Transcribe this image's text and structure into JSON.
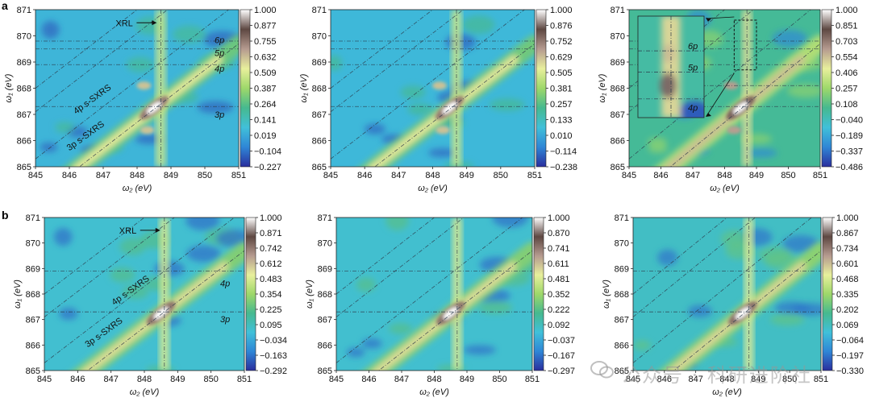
{
  "panel_labels": [
    "a",
    "b"
  ],
  "watermark": {
    "text": "公众号 · 科研进阶社",
    "icon": "wechat-icon"
  },
  "colors": {
    "background": "#2fb08f",
    "colormap": [
      "#2a2e9e",
      "#2f86d6",
      "#41c0d9",
      "#46b98f",
      "#9ed86a",
      "#e8ef9c",
      "#b59a8f",
      "#5e4842",
      "#ffffff"
    ],
    "diagonal_line": "#2c3a4a"
  },
  "axis_labels": {
    "x": "ω₂ (eV)",
    "y": "ω₁ (eV)"
  },
  "annotation_labels": {
    "xrl": "XRL",
    "p6": "6p",
    "p5": "5p",
    "p4": "4p",
    "p3": "3p",
    "sxrs4": "4p s-SXRS",
    "sxrs3": "3p s-SXRS"
  },
  "chart_data": [
    {
      "type": "heatmap",
      "row": "a",
      "col": 1,
      "xlabel": "ω₂ (eV)",
      "ylabel": "ω₁ (eV)",
      "xlim": [
        845,
        851
      ],
      "ylim": [
        865,
        871
      ],
      "xticks": [
        "845",
        "846",
        "847",
        "848",
        "849",
        "850",
        "851"
      ],
      "yticks": [
        "865",
        "866",
        "867",
        "868",
        "869",
        "870",
        "871"
      ],
      "colorbar_ticks": [
        "1.000",
        "0.877",
        "0.755",
        "0.632",
        "0.509",
        "0.387",
        "0.264",
        "0.141",
        "0.019",
        "−0.104",
        "−0.227"
      ],
      "vmin": -0.227,
      "vmax": 1.0,
      "xrl_x": 848.7,
      "hlines": [
        867.3,
        868.9,
        869.5,
        869.8
      ],
      "annotations": [
        "XRL",
        "6p",
        "5p",
        "4p",
        "3p",
        "4p s-SXRS",
        "3p s-SXRS"
      ]
    },
    {
      "type": "heatmap",
      "row": "a",
      "col": 2,
      "xlabel": "ω₂ (eV)",
      "ylabel": "ω₁ (eV)",
      "xlim": [
        845,
        851
      ],
      "ylim": [
        865,
        871
      ],
      "xticks": [
        "845",
        "846",
        "847",
        "848",
        "849",
        "850",
        "851"
      ],
      "yticks": [
        "865",
        "866",
        "867",
        "868",
        "869",
        "870",
        "871"
      ],
      "colorbar_ticks": [
        "1.000",
        "0.876",
        "0.752",
        "0.629",
        "0.505",
        "0.381",
        "0.257",
        "0.133",
        "0.010",
        "−0.114",
        "−0.238"
      ],
      "vmin": -0.238,
      "vmax": 1.0,
      "xrl_x": 848.7,
      "hlines": [
        867.3,
        868.9,
        869.5,
        869.8
      ],
      "annotations": []
    },
    {
      "type": "heatmap",
      "row": "a",
      "col": 3,
      "xlabel": "ω₂ (eV)",
      "ylabel": "ω₁ (eV)",
      "xlim": [
        845,
        851
      ],
      "ylim": [
        865,
        871
      ],
      "xticks": [
        "845",
        "846",
        "847",
        "848",
        "849",
        "850",
        "851"
      ],
      "yticks": [
        "865",
        "866",
        "867",
        "868",
        "869",
        "870",
        "871"
      ],
      "colorbar_ticks": [
        "1.000",
        "0.851",
        "0.703",
        "0.554",
        "0.406",
        "0.257",
        "0.108",
        "−0.040",
        "−0.189",
        "−0.337",
        "−0.486"
      ],
      "vmin": -0.486,
      "vmax": 1.0,
      "xrl_x": 848.7,
      "hlines": [
        867.3,
        868.1,
        868.9,
        869.5,
        869.8
      ],
      "inset": {
        "xlim": [
          848.3,
          849.0
        ],
        "ylim": [
          868.7,
          870.6
        ],
        "labels": [
          "6p",
          "5p",
          "4p"
        ]
      },
      "annotations": []
    },
    {
      "type": "heatmap",
      "row": "b",
      "col": 1,
      "xlabel": "ω₂ (eV)",
      "ylabel": "ω₁ (eV)",
      "xlim": [
        845,
        851
      ],
      "ylim": [
        865,
        871
      ],
      "xticks": [
        "845",
        "846",
        "847",
        "848",
        "849",
        "850",
        "851"
      ],
      "yticks": [
        "865",
        "866",
        "867",
        "868",
        "869",
        "870",
        "871"
      ],
      "colorbar_ticks": [
        "1.000",
        "0.871",
        "0.742",
        "0.612",
        "0.483",
        "0.354",
        "0.225",
        "0.095",
        "−0.034",
        "−0.163",
        "−0.292"
      ],
      "vmin": -0.292,
      "vmax": 1.0,
      "xrl_x": 848.6,
      "hlines": [
        867.3,
        868.9
      ],
      "annotations": [
        "XRL",
        "4p",
        "3p",
        "4p s-SXRS",
        "3p s-SXRS"
      ]
    },
    {
      "type": "heatmap",
      "row": "b",
      "col": 2,
      "xlabel": "ω₂ (eV)",
      "ylabel": "ω₁ (eV)",
      "xlim": [
        845,
        851
      ],
      "ylim": [
        865,
        871
      ],
      "xticks": [
        "845",
        "846",
        "847",
        "848",
        "849",
        "850",
        "851"
      ],
      "yticks": [
        "865",
        "866",
        "867",
        "868",
        "869",
        "870",
        "871"
      ],
      "colorbar_ticks": [
        "1.000",
        "0.870",
        "0.741",
        "0.611",
        "0.481",
        "0.352",
        "0.222",
        "0.092",
        "−0.037",
        "−0.167",
        "−0.297"
      ],
      "vmin": -0.297,
      "vmax": 1.0,
      "xrl_x": 848.7,
      "hlines": [
        867.3,
        868.9
      ],
      "annotations": []
    },
    {
      "type": "heatmap",
      "row": "b",
      "col": 3,
      "xlabel": "ω₂ (eV)",
      "ylabel": "ω₁ (eV)",
      "xlim": [
        845,
        851
      ],
      "ylim": [
        865,
        871
      ],
      "xticks": [
        "845",
        "846",
        "847",
        "848",
        "849",
        "850",
        "851"
      ],
      "yticks": [
        "865",
        "866",
        "867",
        "868",
        "869",
        "870",
        "871"
      ],
      "colorbar_ticks": [
        "1.000",
        "0.867",
        "0.734",
        "0.601",
        "0.468",
        "0.335",
        "0.202",
        "0.069",
        "−0.064",
        "−0.197",
        "−0.330"
      ],
      "vmin": -0.33,
      "vmax": 1.0,
      "xrl_x": 848.7,
      "hlines": [
        867.3,
        868.9
      ],
      "annotations": []
    }
  ]
}
